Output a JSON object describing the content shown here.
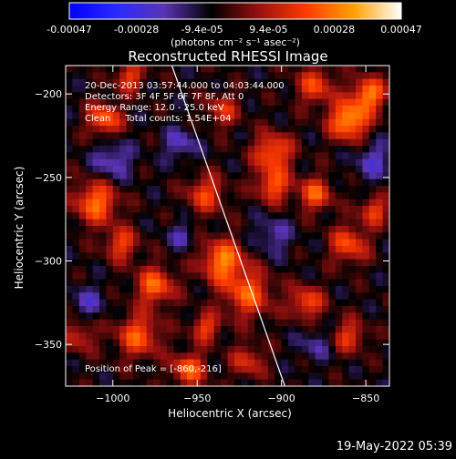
{
  "colorbar": {
    "tick_labels": [
      "-0.00047",
      "-0.00028",
      "-9.4e-05",
      "9.4e-05",
      "0.00028",
      "0.00047"
    ],
    "tick_values": [
      -0.00047,
      -0.00028,
      -9.4e-05,
      9.4e-05,
      0.00028,
      0.00047
    ],
    "range": [
      -0.00047,
      0.00047
    ],
    "unit_label": "(photons cm⁻² s⁻¹ asec⁻²)",
    "colors": [
      "#0000ff",
      "#2a2aff",
      "#5a34b4",
      "#000000",
      "#9a1010",
      "#ff3b00",
      "#ffa000",
      "#ffffff"
    ]
  },
  "chart_data": {
    "type": "heatmap",
    "title": "Reconstructed RHESSI Image",
    "xlabel": "Heliocentric X (arcsec)",
    "ylabel": "Heliocentric Y (arcsec)",
    "xlim": [
      -1028,
      -836
    ],
    "ylim": [
      -375,
      -183
    ],
    "x_ticks": [
      -1000,
      -950,
      -900,
      -850
    ],
    "x_tick_labels": [
      "−1000",
      "−950",
      "−900",
      "−850"
    ],
    "y_ticks": [
      -200,
      -250,
      -300,
      -350
    ],
    "y_tick_labels": [
      "−200",
      "−250",
      "−300",
      "−350"
    ],
    "grid": false,
    "annotations": [
      "20-Dec-2013 03:57:44.000 to 04:03:44.000",
      "Detectors: 3F 4F 5F 6F 7F 8F, Att 0",
      "Energy Range: 12.0 - 25.0 keV",
      "Clean     Total counts: 1.54E+04"
    ],
    "peak_label": "Position of Peak = [-860,-216]",
    "peak": [
      -860,
      -216
    ],
    "limb_line": [
      [
        -965,
        -183
      ],
      [
        -898,
        -375
      ]
    ],
    "grid_size": [
      48,
      48
    ],
    "sources": [
      {
        "x": -860,
        "y": -216,
        "amp": 1.0,
        "s": 8
      },
      {
        "x": -848,
        "y": -200,
        "amp": 0.85,
        "s": 7
      },
      {
        "x": -880,
        "y": -195,
        "amp": 0.6,
        "s": 8
      },
      {
        "x": -935,
        "y": -300,
        "amp": 0.85,
        "s": 9
      },
      {
        "x": -920,
        "y": -320,
        "amp": 0.7,
        "s": 10
      },
      {
        "x": -945,
        "y": -260,
        "amp": 0.6,
        "s": 8
      },
      {
        "x": -1005,
        "y": -215,
        "amp": 0.75,
        "s": 7
      },
      {
        "x": -990,
        "y": -190,
        "amp": 0.6,
        "s": 6
      },
      {
        "x": -1010,
        "y": -265,
        "amp": 0.8,
        "s": 9
      },
      {
        "x": -995,
        "y": -290,
        "amp": 0.6,
        "s": 7
      },
      {
        "x": -975,
        "y": -315,
        "amp": 0.75,
        "s": 8
      },
      {
        "x": -985,
        "y": -345,
        "amp": 0.7,
        "s": 9
      },
      {
        "x": -955,
        "y": -365,
        "amp": 0.75,
        "s": 7
      },
      {
        "x": -920,
        "y": -360,
        "amp": 0.5,
        "s": 7
      },
      {
        "x": -905,
        "y": -235,
        "amp": 0.75,
        "s": 8
      },
      {
        "x": -905,
        "y": -255,
        "amp": 0.7,
        "s": 7
      },
      {
        "x": -880,
        "y": -260,
        "amp": 0.7,
        "s": 7
      },
      {
        "x": -860,
        "y": -290,
        "amp": 0.65,
        "s": 8
      },
      {
        "x": -885,
        "y": -325,
        "amp": 0.65,
        "s": 7
      },
      {
        "x": -860,
        "y": -345,
        "amp": 0.55,
        "s": 7
      },
      {
        "x": -845,
        "y": -270,
        "amp": 0.6,
        "s": 6
      },
      {
        "x": -935,
        "y": -210,
        "amp": 0.5,
        "s": 7
      },
      {
        "x": -1020,
        "y": -345,
        "amp": 0.45,
        "s": 7
      },
      {
        "x": -945,
        "y": -340,
        "amp": 0.6,
        "s": 6
      },
      {
        "x": -1000,
        "y": -240,
        "amp": -0.45,
        "s": 8
      },
      {
        "x": -960,
        "y": -230,
        "amp": -0.4,
        "s": 7
      },
      {
        "x": -845,
        "y": -240,
        "amp": -0.4,
        "s": 8
      },
      {
        "x": -1015,
        "y": -325,
        "amp": -0.35,
        "s": 7
      },
      {
        "x": -905,
        "y": -285,
        "amp": -0.35,
        "s": 8
      },
      {
        "x": -880,
        "y": -350,
        "amp": -0.3,
        "s": 7
      },
      {
        "x": -960,
        "y": -285,
        "amp": -0.3,
        "s": 6
      }
    ]
  },
  "footer": {
    "date": "19-May-2022 05:39"
  }
}
